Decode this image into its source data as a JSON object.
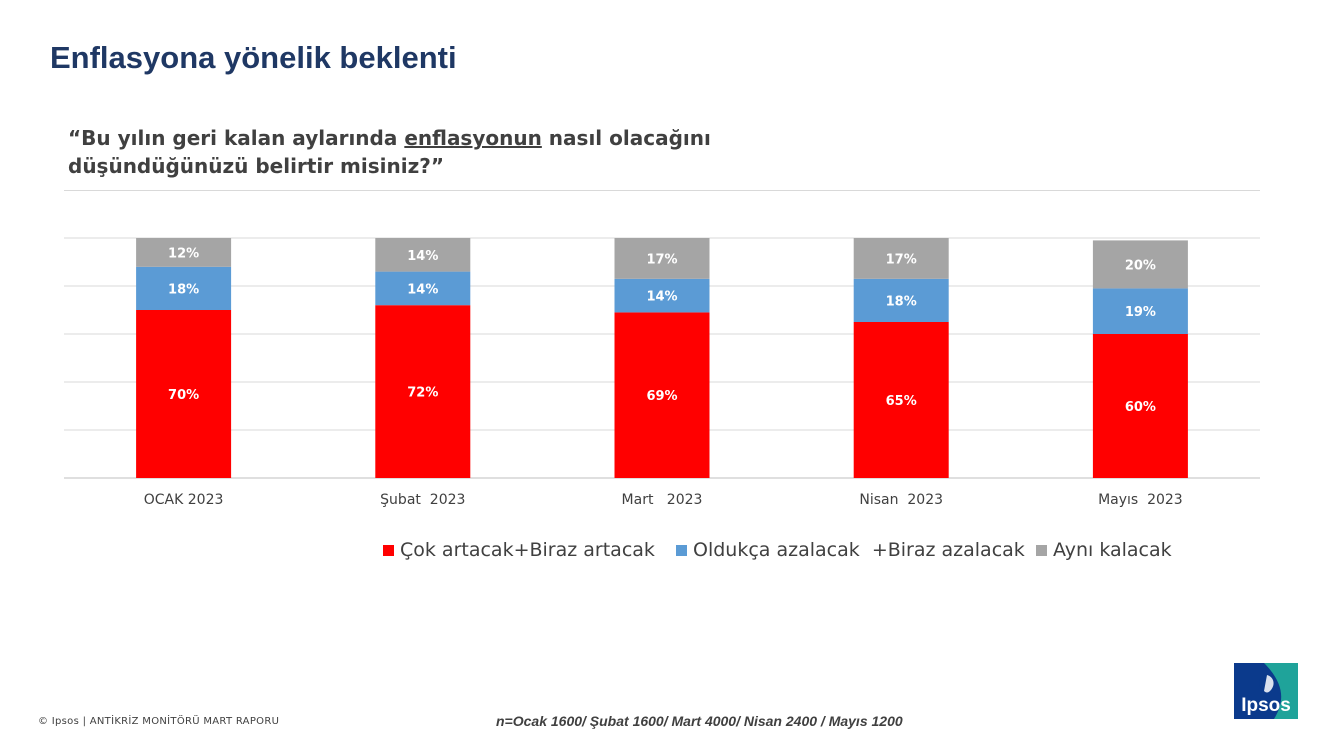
{
  "header": {
    "title": "Enflasyona yönelik beklenti",
    "question_pre": "“Bu yılın geri kalan aylarında ",
    "question_underlined": "enflasyonun",
    "question_post": " nasıl olacağını düşündüğünüzü belirtir misiniz?”"
  },
  "chart_data": {
    "type": "bar",
    "stacked": true,
    "categories": [
      "OCAK 2023",
      "Şubat  2023",
      "Mart   2023",
      "Nisan  2023",
      "Mayıs  2023"
    ],
    "series": [
      {
        "name": "Çok artacak+Biraz artacak",
        "values": [
          70,
          72,
          69,
          65,
          60
        ],
        "labels": [
          "70%",
          "72%",
          "69%",
          "65%",
          "60%"
        ],
        "color": "#ff0000"
      },
      {
        "name": "Oldukça azalacak  +Biraz azalacak",
        "values": [
          18,
          14,
          14,
          18,
          19
        ],
        "labels": [
          "18%",
          "14%",
          "14%",
          "18%",
          "19%"
        ],
        "color": "#5b9bd5"
      },
      {
        "name": "Aynı kalacak",
        "values": [
          12,
          14,
          17,
          17,
          20
        ],
        "labels": [
          "12%",
          "14%",
          "17%",
          "17%",
          "20%"
        ],
        "color": "#a5a5a5"
      }
    ],
    "ylim": [
      0,
      100
    ],
    "grid": true,
    "legend_position": "bottom"
  },
  "footer": {
    "copyright": "© Ipsos | ANTİKRİZ MONİTÖRÜ MART  RAPORU",
    "sample_note": "n=Ocak 1600/ Şubat 1600/ Mart 4000/ Nisan 2400 / Mayıs 1200"
  },
  "logo": {
    "text": "Ipsos",
    "color": "#1f7a7a"
  }
}
